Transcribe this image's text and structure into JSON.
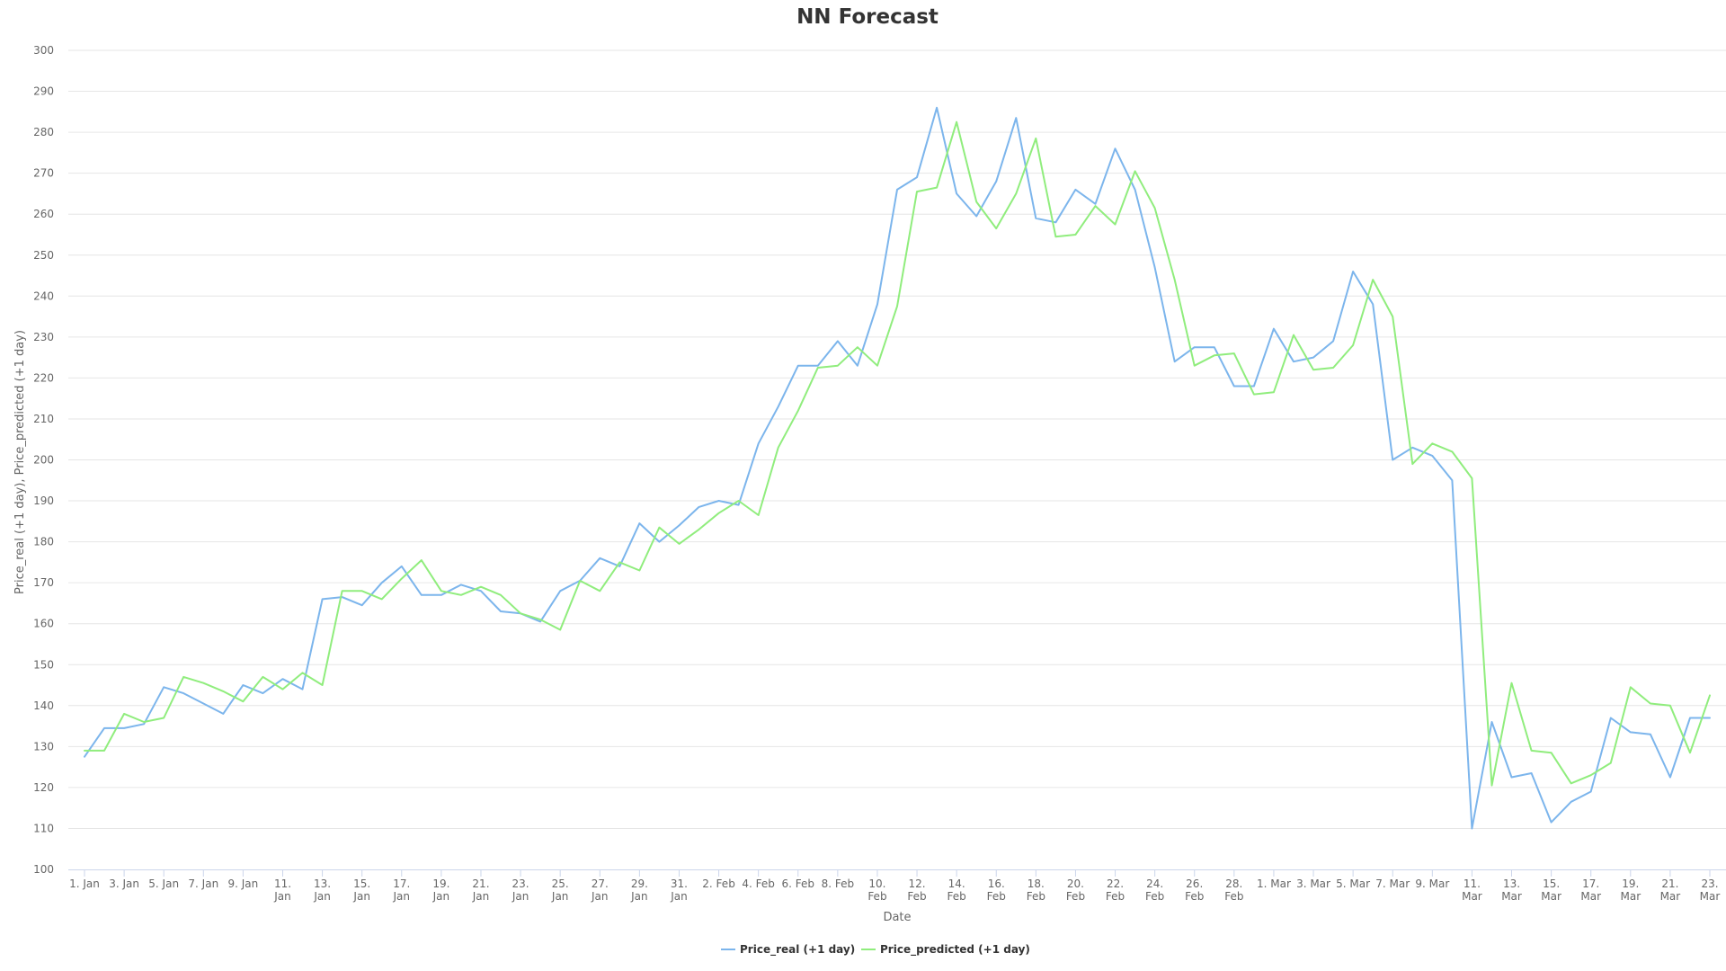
{
  "chart_data": {
    "type": "line",
    "title": "NN Forecast",
    "xlabel": "Date",
    "ylabel": "Price_real (+1 day), Price_predicted (+1 day)",
    "ylim": [
      100,
      300
    ],
    "yticks": [
      100,
      110,
      120,
      130,
      140,
      150,
      160,
      170,
      180,
      190,
      200,
      210,
      220,
      230,
      240,
      250,
      260,
      270,
      280,
      290,
      300
    ],
    "grid": true,
    "legend": "bottom-center",
    "x_start": "1. Jan",
    "x_end": "23. Mar",
    "x_tick_labels": [
      [
        "1. Jan"
      ],
      [
        "3. Jan"
      ],
      [
        "5. Jan"
      ],
      [
        "7. Jan"
      ],
      [
        "9. Jan"
      ],
      [
        "11.",
        "Jan"
      ],
      [
        "13.",
        "Jan"
      ],
      [
        "15.",
        "Jan"
      ],
      [
        "17.",
        "Jan"
      ],
      [
        "19.",
        "Jan"
      ],
      [
        "21.",
        "Jan"
      ],
      [
        "23.",
        "Jan"
      ],
      [
        "25.",
        "Jan"
      ],
      [
        "27.",
        "Jan"
      ],
      [
        "29.",
        "Jan"
      ],
      [
        "31.",
        "Jan"
      ],
      [
        "2. Feb"
      ],
      [
        "4. Feb"
      ],
      [
        "6. Feb"
      ],
      [
        "8. Feb"
      ],
      [
        "10.",
        "Feb"
      ],
      [
        "12.",
        "Feb"
      ],
      [
        "14.",
        "Feb"
      ],
      [
        "16.",
        "Feb"
      ],
      [
        "18.",
        "Feb"
      ],
      [
        "20.",
        "Feb"
      ],
      [
        "22.",
        "Feb"
      ],
      [
        "24.",
        "Feb"
      ],
      [
        "26.",
        "Feb"
      ],
      [
        "28.",
        "Feb"
      ],
      [
        "1. Mar"
      ],
      [
        "3. Mar"
      ],
      [
        "5. Mar"
      ],
      [
        "7. Mar"
      ],
      [
        "9. Mar"
      ],
      [
        "11.",
        "Mar"
      ],
      [
        "13.",
        "Mar"
      ],
      [
        "15.",
        "Mar"
      ],
      [
        "17.",
        "Mar"
      ],
      [
        "19.",
        "Mar"
      ],
      [
        "21.",
        "Mar"
      ],
      [
        "23.",
        "Mar"
      ]
    ],
    "series": [
      {
        "name": "Price_real (+1 day)",
        "color": "#7cb5ec",
        "values": [
          127.5,
          134.5,
          134.5,
          135.5,
          144.5,
          143,
          140.5,
          138,
          145,
          143,
          146.5,
          144,
          166,
          166.5,
          164.5,
          170,
          174,
          167,
          167,
          169.5,
          168,
          163,
          162.5,
          160.5,
          168,
          170.5,
          176,
          174,
          184.5,
          180,
          184,
          188.5,
          190,
          189,
          204,
          213,
          223,
          223,
          229,
          223,
          238,
          266,
          269,
          286,
          265,
          259.5,
          268,
          283.5,
          259,
          258,
          266,
          262.5,
          276,
          266,
          247,
          224,
          227.5,
          227.5,
          218,
          218,
          232,
          224,
          225,
          229,
          246,
          238,
          200,
          203,
          201,
          195,
          110,
          136,
          122.5,
          123.5,
          111.5,
          116.5,
          119,
          137,
          133.5,
          133,
          122.5,
          137,
          137
        ]
      },
      {
        "name": "Price_predicted (+1 day)",
        "color": "#90ed7d",
        "values": [
          129,
          129,
          138,
          136,
          137,
          147,
          145.5,
          143.5,
          141,
          147,
          144,
          148,
          145,
          168,
          168,
          166,
          171,
          175.5,
          168,
          167,
          169,
          167,
          162.5,
          161,
          158.5,
          170.5,
          168,
          175,
          173,
          183.5,
          179.5,
          183,
          187,
          190,
          186.5,
          203,
          212,
          222.5,
          223,
          227.5,
          223,
          237.5,
          265.5,
          266.5,
          282.5,
          263,
          256.5,
          265,
          278.5,
          254.5,
          255,
          262,
          257.5,
          270.5,
          261.5,
          244,
          223,
          225.5,
          226,
          216,
          216.5,
          230.5,
          222,
          222.5,
          228,
          244,
          235,
          199,
          204,
          202,
          195.5,
          120.5,
          145.5,
          129,
          128.5,
          121,
          123,
          126,
          144.5,
          140.5,
          140,
          128.5,
          142.5
        ]
      }
    ]
  }
}
